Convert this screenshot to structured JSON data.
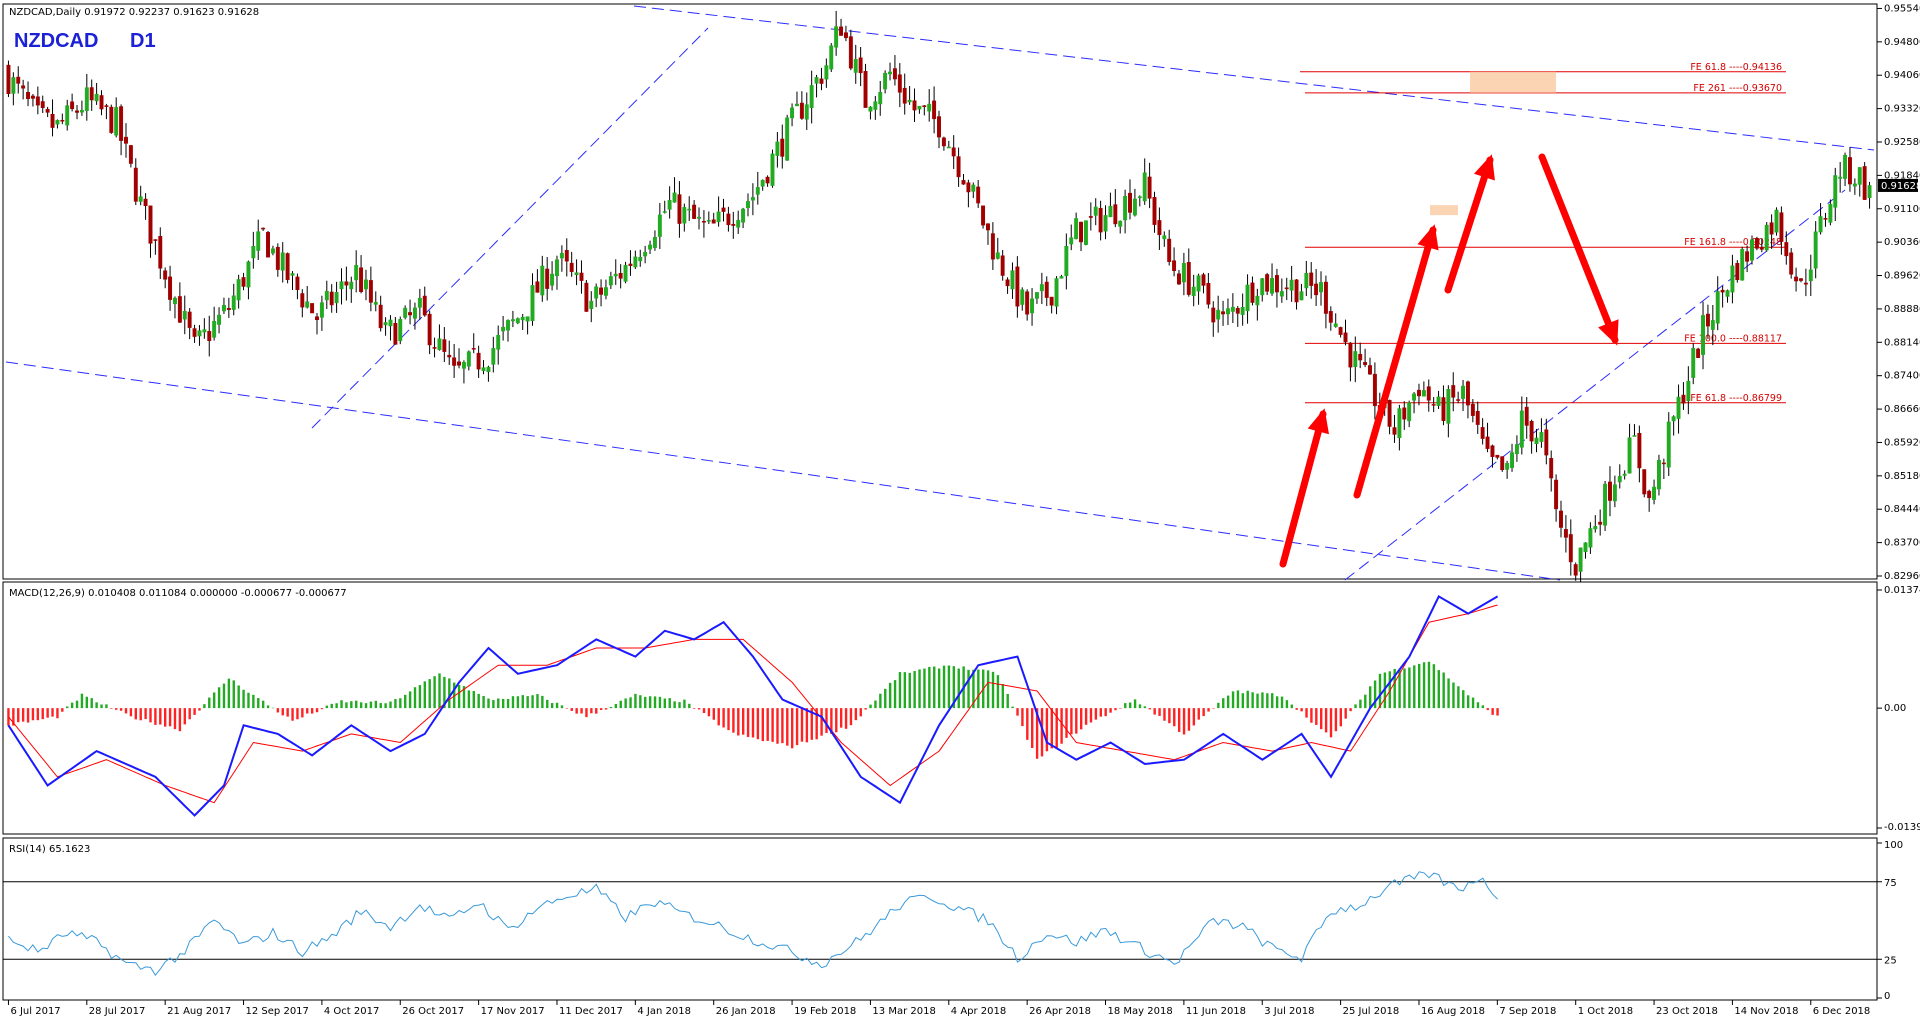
{
  "main_header": "NZDCAD,Daily  0.91972 0.92237 0.91623 0.91628",
  "symbol_label": "NZDCAD",
  "timeframe_label": "D1",
  "current_price_label": "0.91628",
  "macd_header": "MACD(12,26,9) 0.010408 0.011084 0.000000 -0.000677 -0.000677",
  "rsi_header": "RSI(14) 65.1623",
  "colors": {
    "bull_candle": "#22aa22",
    "bear_candle": "#a00000",
    "channel_line": "#2b2bff",
    "fib_line": "#e00000",
    "arrow": "#ff0000",
    "macd_line": "#1a1aff",
    "signal_line": "#ff0000",
    "hist_pos": "#22aa22",
    "hist_neg": "#ff2222",
    "rsi_line": "#3a9ad9",
    "zone_fill": "#f9c9a0"
  },
  "chart_data": [
    {
      "type": "candlestick",
      "title": "NZDCAD,Daily",
      "ylim": [
        0.8296,
        0.9555
      ],
      "y_ticks": [
        "0.95540",
        "0.94800",
        "0.94060",
        "0.93320",
        "0.92580",
        "0.91840",
        "0.91100",
        "0.90360",
        "0.89620",
        "0.88880",
        "0.88140",
        "0.87400",
        "0.86660",
        "0.85920",
        "0.85180",
        "0.84440",
        "0.83700",
        "0.82960"
      ],
      "x_tick_labels": [
        "6 Jul 2017",
        "28 Jul 2017",
        "21 Aug 2017",
        "12 Sep 2017",
        "4 Oct 2017",
        "26 Oct 2017",
        "17 Nov 2017",
        "11 Dec 2017",
        "4 Jan 2018",
        "26 Jan 2018",
        "19 Feb 2018",
        "13 Mar 2018",
        "4 Apr 2018",
        "26 Apr 2018",
        "18 May 2018",
        "11 Jun 2018",
        "3 Jul 2018",
        "25 Jul 2018",
        "16 Aug 2018",
        "7 Sep 2018",
        "1 Oct 2018",
        "23 Oct 2018",
        "14 Nov 2018",
        "6 Dec 2018"
      ],
      "close_path": [
        [
          0,
          0.94
        ],
        [
          6,
          0.931
        ],
        [
          10,
          0.929
        ],
        [
          16,
          0.935
        ],
        [
          22,
          0.93
        ],
        [
          27,
          0.912
        ],
        [
          33,
          0.894
        ],
        [
          38,
          0.88
        ],
        [
          45,
          0.889
        ],
        [
          52,
          0.905
        ],
        [
          57,
          0.896
        ],
        [
          63,
          0.887
        ],
        [
          71,
          0.897
        ],
        [
          77,
          0.883
        ],
        [
          84,
          0.888
        ],
        [
          91,
          0.874
        ],
        [
          98,
          0.879
        ],
        [
          105,
          0.888
        ],
        [
          112,
          0.9
        ],
        [
          119,
          0.89
        ],
        [
          126,
          0.898
        ],
        [
          135,
          0.912
        ],
        [
          143,
          0.906
        ],
        [
          152,
          0.914
        ],
        [
          160,
          0.93
        ],
        [
          167,
          0.943
        ],
        [
          170,
          0.952
        ],
        [
          175,
          0.935
        ],
        [
          180,
          0.941
        ],
        [
          185,
          0.933
        ],
        [
          190,
          0.93
        ],
        [
          195,
          0.919
        ],
        [
          202,
          0.9
        ],
        [
          208,
          0.888
        ],
        [
          213,
          0.893
        ],
        [
          218,
          0.906
        ],
        [
          225,
          0.91
        ],
        [
          232,
          0.916
        ],
        [
          237,
          0.899
        ],
        [
          243,
          0.893
        ],
        [
          248,
          0.886
        ],
        [
          255,
          0.895
        ],
        [
          262,
          0.894
        ],
        [
          268,
          0.893
        ],
        [
          273,
          0.881
        ],
        [
          278,
          0.871
        ],
        [
          283,
          0.862
        ],
        [
          288,
          0.872
        ],
        [
          292,
          0.866
        ],
        [
          297,
          0.87
        ],
        [
          302,
          0.855
        ],
        [
          306,
          0.852
        ],
        [
          309,
          0.864
        ],
        [
          313,
          0.86
        ],
        [
          316,
          0.843
        ],
        [
          320,
          0.832
        ],
        [
          324,
          0.842
        ],
        [
          328,
          0.852
        ],
        [
          332,
          0.859
        ],
        [
          335,
          0.846
        ],
        [
          340,
          0.864
        ],
        [
          346,
          0.884
        ],
        [
          352,
          0.897
        ],
        [
          357,
          0.904
        ],
        [
          361,
          0.909
        ],
        [
          366,
          0.893
        ],
        [
          370,
          0.907
        ],
        [
          374,
          0.92
        ],
        [
          378,
          0.918
        ],
        [
          380,
          0.914
        ]
      ],
      "n_bars": 381,
      "x_ticks_bar_index": [
        0,
        16,
        32,
        48,
        64,
        80,
        96,
        112,
        128,
        144,
        160,
        176,
        192,
        208,
        224,
        240,
        256,
        272,
        288,
        304,
        320,
        336,
        352,
        368
      ],
      "fibonacci_levels": [
        {
          "label": "FE 61.8 ----0.94136",
          "value": 0.94136
        },
        {
          "label": "FE 261 ----0.93670",
          "value": 0.9367
        },
        {
          "label": "FE 161.8 ----0.90248",
          "value": 0.90248
        },
        {
          "label": "FE 100.0 ----0.88117",
          "value": 0.88117
        },
        {
          "label": "FE 61.8 ----0.86799",
          "value": 0.86799
        }
      ]
    },
    {
      "type": "line",
      "title": "MACD(12,26,9)",
      "ylim": [
        -0.013949,
        0.013747
      ],
      "y_ticks": [
        "0.013747",
        "0.00",
        "-0.013949"
      ],
      "series": [
        {
          "name": "MACD",
          "values_path": [
            [
              0,
              -0.002
            ],
            [
              8,
              -0.009
            ],
            [
              18,
              -0.005
            ],
            [
              30,
              -0.008
            ],
            [
              38,
              -0.0125
            ],
            [
              44,
              -0.009
            ],
            [
              48,
              -0.002
            ],
            [
              55,
              -0.003
            ],
            [
              62,
              -0.0055
            ],
            [
              70,
              -0.002
            ],
            [
              78,
              -0.005
            ],
            [
              85,
              -0.003
            ],
            [
              92,
              0.003
            ],
            [
              98,
              0.007
            ],
            [
              104,
              0.004
            ],
            [
              112,
              0.005
            ],
            [
              120,
              0.008
            ],
            [
              128,
              0.006
            ],
            [
              134,
              0.009
            ],
            [
              140,
              0.008
            ],
            [
              146,
              0.01
            ],
            [
              152,
              0.006
            ],
            [
              158,
              0.001
            ],
            [
              166,
              -0.001
            ],
            [
              174,
              -0.008
            ],
            [
              182,
              -0.011
            ],
            [
              190,
              -0.002
            ],
            [
              198,
              0.005
            ],
            [
              206,
              0.006
            ],
            [
              212,
              -0.004
            ],
            [
              218,
              -0.006
            ],
            [
              225,
              -0.004
            ],
            [
              232,
              -0.0065
            ],
            [
              240,
              -0.006
            ],
            [
              248,
              -0.003
            ],
            [
              256,
              -0.006
            ],
            [
              264,
              -0.003
            ],
            [
              270,
              -0.008
            ],
            [
              278,
              0.0
            ],
            [
              286,
              0.006
            ],
            [
              292,
              0.013
            ],
            [
              298,
              0.011
            ],
            [
              304,
              0.013
            ]
          ]
        },
        {
          "name": "Signal",
          "values_path": [
            [
              0,
              -0.001
            ],
            [
              10,
              -0.008
            ],
            [
              20,
              -0.006
            ],
            [
              32,
              -0.009
            ],
            [
              42,
              -0.011
            ],
            [
              50,
              -0.004
            ],
            [
              60,
              -0.005
            ],
            [
              70,
              -0.003
            ],
            [
              80,
              -0.004
            ],
            [
              90,
              0.001
            ],
            [
              100,
              0.005
            ],
            [
              110,
              0.005
            ],
            [
              120,
              0.007
            ],
            [
              130,
              0.007
            ],
            [
              140,
              0.008
            ],
            [
              150,
              0.008
            ],
            [
              160,
              0.003
            ],
            [
              170,
              -0.004
            ],
            [
              180,
              -0.009
            ],
            [
              190,
              -0.005
            ],
            [
              200,
              0.003
            ],
            [
              210,
              0.002
            ],
            [
              218,
              -0.004
            ],
            [
              228,
              -0.005
            ],
            [
              238,
              -0.006
            ],
            [
              248,
              -0.004
            ],
            [
              258,
              -0.005
            ],
            [
              266,
              -0.004
            ],
            [
              274,
              -0.005
            ],
            [
              282,
              0.002
            ],
            [
              290,
              0.01
            ],
            [
              298,
              0.011
            ],
            [
              304,
              0.012
            ]
          ]
        },
        {
          "name": "Histogram",
          "values_path": [
            [
              0,
              -0.002
            ],
            [
              10,
              -0.001
            ],
            [
              15,
              0.0015
            ],
            [
              25,
              -0.001
            ],
            [
              35,
              -0.0025
            ],
            [
              45,
              0.0035
            ],
            [
              50,
              0.0015
            ],
            [
              58,
              -0.0015
            ],
            [
              68,
              0.0008
            ],
            [
              78,
              0.0006
            ],
            [
              88,
              0.004
            ],
            [
              98,
              0.001
            ],
            [
              108,
              0.0015
            ],
            [
              118,
              -0.001
            ],
            [
              128,
              0.0015
            ],
            [
              138,
              0.0008
            ],
            [
              148,
              -0.003
            ],
            [
              160,
              -0.0045
            ],
            [
              172,
              -0.002
            ],
            [
              182,
              0.004
            ],
            [
              192,
              0.005
            ],
            [
              202,
              0.004
            ],
            [
              210,
              -0.006
            ],
            [
              220,
              -0.002
            ],
            [
              230,
              0.001
            ],
            [
              240,
              -0.003
            ],
            [
              250,
              0.002
            ],
            [
              260,
              0.0015
            ],
            [
              270,
              -0.0035
            ],
            [
              280,
              0.004
            ],
            [
              290,
              0.0055
            ],
            [
              300,
              0.0006
            ],
            [
              304,
              -0.001
            ]
          ]
        }
      ]
    },
    {
      "type": "line",
      "title": "RSI(14)",
      "ylim": [
        0,
        100
      ],
      "y_ticks": [
        "100",
        "75",
        "25",
        "0"
      ],
      "levels": [
        75,
        25
      ],
      "series": [
        {
          "name": "RSI",
          "values_path": [
            [
              0,
              38
            ],
            [
              6,
              30
            ],
            [
              12,
              42
            ],
            [
              18,
              36
            ],
            [
              24,
              22
            ],
            [
              30,
              18
            ],
            [
              36,
              30
            ],
            [
              42,
              50
            ],
            [
              48,
              34
            ],
            [
              54,
              42
            ],
            [
              60,
              30
            ],
            [
              66,
              40
            ],
            [
              72,
              56
            ],
            [
              78,
              46
            ],
            [
              84,
              60
            ],
            [
              90,
              50
            ],
            [
              96,
              62
            ],
            [
              102,
              44
            ],
            [
              108,
              58
            ],
            [
              114,
              66
            ],
            [
              120,
              70
            ],
            [
              126,
              52
            ],
            [
              132,
              62
            ],
            [
              138,
              54
            ],
            [
              144,
              48
            ],
            [
              150,
              40
            ],
            [
              158,
              32
            ],
            [
              166,
              22
            ],
            [
              174,
              38
            ],
            [
              182,
              60
            ],
            [
              188,
              66
            ],
            [
              194,
              58
            ],
            [
              200,
              50
            ],
            [
              206,
              26
            ],
            [
              212,
              42
            ],
            [
              218,
              36
            ],
            [
              224,
              44
            ],
            [
              230,
              34
            ],
            [
              238,
              22
            ],
            [
              246,
              50
            ],
            [
              252,
              46
            ],
            [
              258,
              32
            ],
            [
              264,
              26
            ],
            [
              270,
              56
            ],
            [
              276,
              60
            ],
            [
              282,
              72
            ],
            [
              290,
              80
            ],
            [
              296,
              70
            ],
            [
              300,
              78
            ],
            [
              304,
              66
            ]
          ]
        }
      ]
    }
  ]
}
